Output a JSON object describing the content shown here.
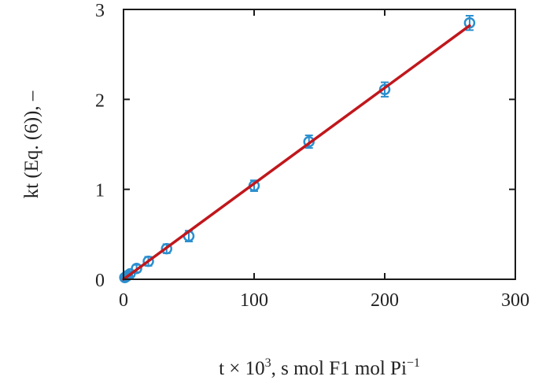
{
  "chart_data": {
    "type": "scatter",
    "title": "",
    "xlabel": {
      "prefix": "t × 10",
      "superscript": "3",
      "suffix": ", s mol F1 mol Pi",
      "suffix_superscript": "−1"
    },
    "ylabel": "kt (Eq. (6)), –",
    "xlim": [
      0,
      300
    ],
    "ylim": [
      0,
      3
    ],
    "x_ticks": [
      0,
      100,
      200,
      300
    ],
    "y_ticks": [
      0,
      1,
      2,
      3
    ],
    "grid": false,
    "legend": "none",
    "series": [
      {
        "marker": "circle",
        "color": "#2a8fcf",
        "points": [
          {
            "x": 1,
            "y": 0.02,
            "err": 0.03
          },
          {
            "x": 2,
            "y": 0.03,
            "err": 0.03
          },
          {
            "x": 3,
            "y": 0.04,
            "err": 0.03
          },
          {
            "x": 5,
            "y": 0.06,
            "err": 0.03
          },
          {
            "x": 10,
            "y": 0.12,
            "err": 0.04
          },
          {
            "x": 19,
            "y": 0.2,
            "err": 0.05
          },
          {
            "x": 33,
            "y": 0.34,
            "err": 0.05
          },
          {
            "x": 50,
            "y": 0.48,
            "err": 0.06
          },
          {
            "x": 100,
            "y": 1.04,
            "err": 0.06
          },
          {
            "x": 142,
            "y": 1.53,
            "err": 0.07
          },
          {
            "x": 200,
            "y": 2.11,
            "err": 0.08
          },
          {
            "x": 265,
            "y": 2.85,
            "err": 0.08
          }
        ]
      }
    ],
    "fit_line": {
      "color": "#c0171c",
      "x": [
        0,
        265
      ],
      "y": [
        0,
        2.82
      ]
    }
  }
}
